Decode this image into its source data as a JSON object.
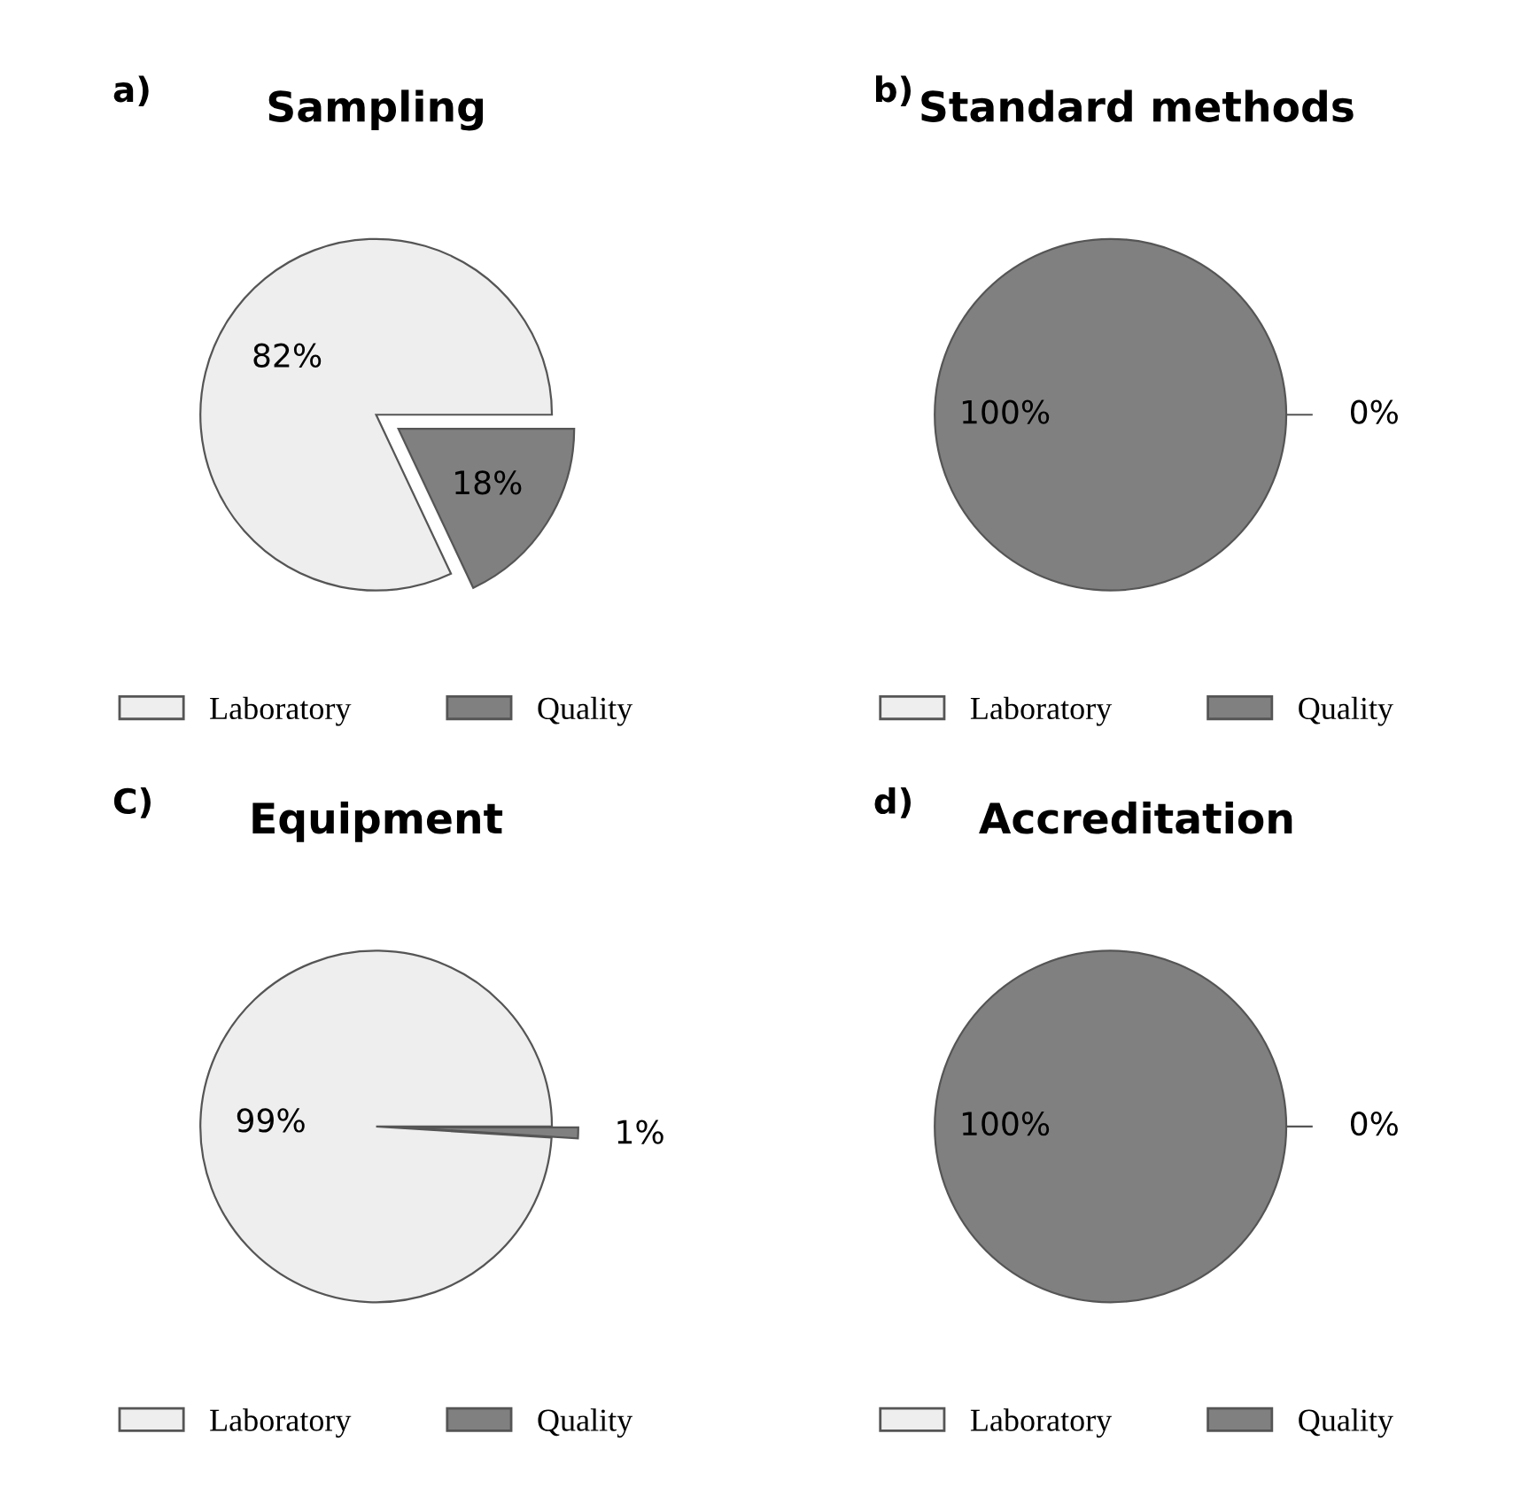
{
  "chart_data": [
    {
      "type": "pie",
      "title": "Sampling",
      "annotations": [
        "a)"
      ],
      "categories": [
        "Laboratory",
        "Quality"
      ],
      "values": [
        82,
        18
      ],
      "value_labels": [
        "82%",
        "18%"
      ],
      "colors": [
        "#eeeeee",
        "#808080"
      ],
      "legend": "bottom"
    },
    {
      "type": "pie",
      "title": "Standard methods",
      "annotations": [
        "b)"
      ],
      "categories": [
        "Laboratory",
        "Quality"
      ],
      "values": [
        0,
        100
      ],
      "value_labels": [
        "0%",
        "100%"
      ],
      "colors": [
        "#eeeeee",
        "#808080"
      ],
      "legend": "bottom"
    },
    {
      "type": "pie",
      "title": "Equipment",
      "annotations": [
        "C)"
      ],
      "categories": [
        "Laboratory",
        "Quality"
      ],
      "values": [
        99,
        1
      ],
      "value_labels": [
        "99%",
        "1%"
      ],
      "colors": [
        "#eeeeee",
        "#808080"
      ],
      "legend": "bottom"
    },
    {
      "type": "pie",
      "title": "Accreditation",
      "annotations": [
        "d)"
      ],
      "categories": [
        "Laboratory",
        "Quality"
      ],
      "values": [
        0,
        100
      ],
      "value_labels": [
        "0%",
        "100%"
      ],
      "colors": [
        "#eeeeee",
        "#808080"
      ],
      "legend": "bottom"
    }
  ]
}
